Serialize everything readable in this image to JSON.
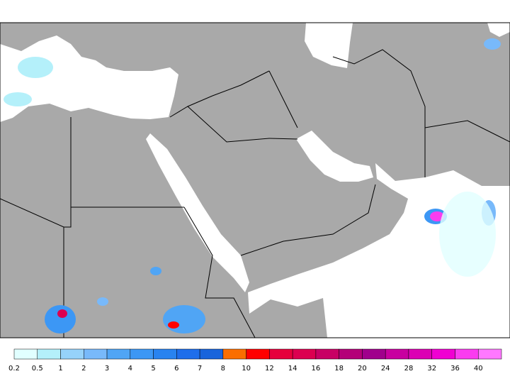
{
  "legend": {
    "labels": [
      "0.2",
      "0.5",
      "1",
      "2",
      "3",
      "4",
      "5",
      "6",
      "7",
      "8",
      "10",
      "12",
      "14",
      "16",
      "18",
      "20",
      "24",
      "28",
      "32",
      "36",
      "40"
    ],
    "colors": [
      "#e1ffff",
      "#b4f0fa",
      "#96d2fa",
      "#78b9fa",
      "#50a5f5",
      "#3c97f5",
      "#2883f0",
      "#1e6eeb",
      "#1964dc",
      "#fa6e00",
      "#ff0000",
      "#e6003c",
      "#dc0050",
      "#c80064",
      "#b40078",
      "#a0008c",
      "#c800a0",
      "#dc00b4",
      "#f000d2",
      "#fa3cf0",
      "#ff78ff"
    ]
  }
}
